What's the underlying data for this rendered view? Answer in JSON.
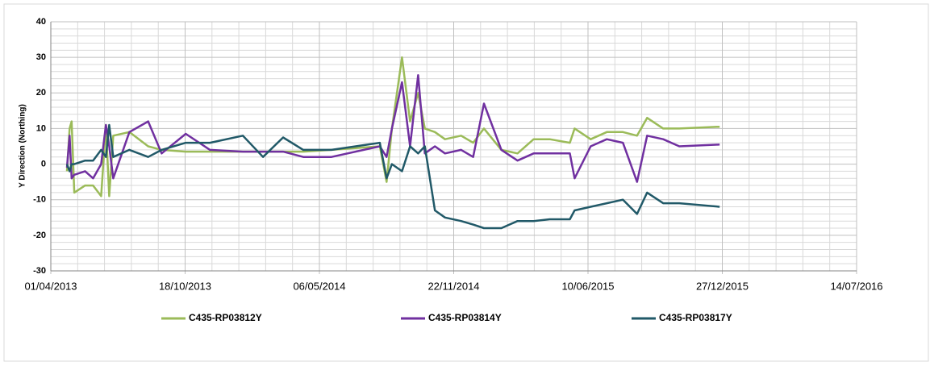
{
  "chart_data": {
    "type": "line",
    "y_label": "Y Direction (Northing)",
    "x": [
      "25/04/2013",
      "29/04/2013",
      "02/05/2013",
      "06/05/2013",
      "22/05/2013",
      "03/06/2013",
      "15/06/2013",
      "22/06/2013",
      "27/06/2013",
      "03/07/2013",
      "27/07/2013",
      "24/08/2013",
      "13/09/2013",
      "19/10/2013",
      "24/11/2013",
      "12/01/2014",
      "11/02/2014",
      "13/03/2014",
      "12/04/2014",
      "24/05/2014",
      "04/08/2014",
      "14/08/2014",
      "22/08/2014",
      "06/09/2014",
      "18/09/2014",
      "30/09/2014",
      "10/10/2014",
      "25/10/2014",
      "09/11/2014",
      "03/12/2014",
      "21/12/2014",
      "06/01/2015",
      "01/02/2015",
      "25/02/2015",
      "21/03/2015",
      "14/04/2015",
      "14/05/2015",
      "21/05/2015",
      "14/06/2015",
      "08/07/2015",
      "01/08/2015",
      "22/08/2015",
      "06/09/2015",
      "30/09/2015",
      "24/10/2015",
      "23/12/2015"
    ],
    "series": [
      {
        "name": "C435-RP03812Y",
        "color": "#9bbb59",
        "values": [
          -2,
          10,
          12,
          -8,
          -6,
          -6,
          -9,
          11,
          -9,
          8,
          9,
          5,
          4,
          3.5,
          3.5,
          3.5,
          3.5,
          3.5,
          3.5,
          4,
          5,
          -5,
          10,
          30,
          12,
          20,
          10,
          9,
          7,
          8,
          6,
          10,
          4,
          3,
          7,
          7,
          6,
          10,
          7,
          9,
          9,
          8,
          13,
          10,
          10,
          10.5
        ]
      },
      {
        "name": "C435-RP03814Y",
        "color": "#7030a0",
        "values": [
          -1,
          8,
          -4,
          -3,
          -2,
          -4,
          0,
          11,
          5,
          -4,
          9,
          12,
          3,
          8.5,
          4,
          3.5,
          3.5,
          3.5,
          2,
          2,
          5,
          2,
          10,
          23,
          5,
          25,
          3,
          5,
          3,
          4,
          2,
          17,
          4,
          1,
          3,
          3,
          3,
          -4,
          5,
          7,
          6,
          -5,
          8,
          7,
          5,
          5.5
        ]
      },
      {
        "name": "C435-RP03817Y",
        "color": "#215968",
        "values": [
          0,
          -2,
          0,
          0,
          1,
          1,
          4,
          2,
          11,
          2,
          4,
          2,
          4,
          6,
          6,
          8,
          2,
          7.5,
          4,
          4,
          6,
          -4,
          0,
          -2,
          5,
          3,
          5,
          -13,
          -15,
          -16,
          -17,
          -18,
          -18,
          -16,
          -16,
          -15.5,
          -15.5,
          -13,
          -12,
          -11,
          -10,
          -14,
          -8,
          -11,
          -11,
          -12
        ]
      }
    ],
    "xlim": [
      "01/04/2013",
      "14/07/2016"
    ],
    "xticks": [
      "01/04/2013",
      "18/10/2013",
      "06/05/2014",
      "22/11/2014",
      "10/06/2015",
      "27/12/2015",
      "14/07/2016"
    ],
    "ylim": [
      -30,
      40
    ],
    "yticks": [
      -30,
      -20,
      -10,
      0,
      10,
      20,
      30,
      40
    ],
    "grid": true,
    "legend": "bottom"
  }
}
